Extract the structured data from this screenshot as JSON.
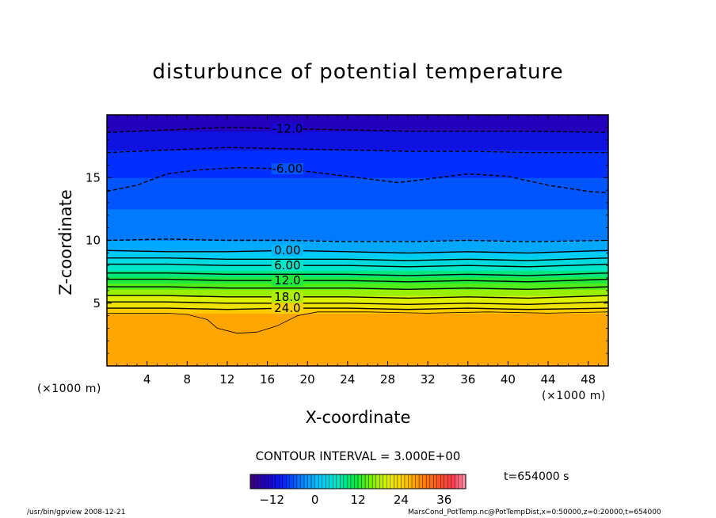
{
  "chart_data": {
    "type": "heatmap",
    "title": "disturbunce of potential temperature",
    "xlabel": "X-coordinate",
    "ylabel": "Z-coordinate",
    "x_unit": "(×1000 m)",
    "x_unit_right": "(×1000 m)",
    "xlim": [
      0,
      50
    ],
    "ylim": [
      0,
      20
    ],
    "x_ticks": [
      4,
      8,
      12,
      16,
      20,
      24,
      28,
      32,
      36,
      40,
      44,
      48
    ],
    "y_ticks": [
      5,
      10,
      15
    ],
    "contour_interval_text": "CONTOUR INTERVAL = 3.000E+00",
    "colorbar": {
      "range": [
        -18,
        42
      ],
      "ticks": [
        -12,
        0,
        12,
        24,
        36
      ]
    },
    "color_bands": [
      {
        "z": [
          0.0,
          4.2
        ],
        "value": 27.5
      },
      {
        "z": [
          4.2,
          4.6
        ],
        "value": 25
      },
      {
        "z": [
          4.6,
          5.1
        ],
        "value": 22
      },
      {
        "z": [
          5.1,
          5.6
        ],
        "value": 20
      },
      {
        "z": [
          5.6,
          6.1
        ],
        "value": 17
      },
      {
        "z": [
          6.1,
          6.6
        ],
        "value": 14
      },
      {
        "z": [
          6.6,
          7.1
        ],
        "value": 12
      },
      {
        "z": [
          7.1,
          7.6
        ],
        "value": 9
      },
      {
        "z": [
          7.6,
          8.1
        ],
        "value": 6
      },
      {
        "z": [
          8.1,
          8.6
        ],
        "value": 4
      },
      {
        "z": [
          8.6,
          9.1
        ],
        "value": 2
      },
      {
        "z": [
          9.1,
          10.0
        ],
        "value": -1
      },
      {
        "z": [
          10.0,
          12.5
        ],
        "value": -4
      },
      {
        "z": [
          12.5,
          15.0
        ],
        "value": -6
      },
      {
        "z": [
          15.0,
          17.2
        ],
        "value": -8
      },
      {
        "z": [
          17.2,
          18.7
        ],
        "value": -11
      },
      {
        "z": [
          18.7,
          20.0
        ],
        "value": -14
      }
    ],
    "contours": [
      {
        "value": -12,
        "label": "-12.0",
        "label_x": 18,
        "dashed": true,
        "points": [
          [
            0,
            18.6
          ],
          [
            6,
            18.8
          ],
          [
            12,
            19.0
          ],
          [
            18,
            18.9
          ],
          [
            24,
            18.8
          ],
          [
            30,
            18.7
          ],
          [
            36,
            18.7
          ],
          [
            42,
            18.7
          ],
          [
            50,
            18.6
          ]
        ]
      },
      {
        "value": -9,
        "label": "",
        "label_x": null,
        "dashed": true,
        "points": [
          [
            0,
            17.0
          ],
          [
            6,
            17.2
          ],
          [
            12,
            17.4
          ],
          [
            18,
            17.3
          ],
          [
            24,
            17.2
          ],
          [
            30,
            17.1
          ],
          [
            36,
            17.1
          ],
          [
            42,
            17.0
          ],
          [
            50,
            17.0
          ]
        ]
      },
      {
        "value": -6,
        "label": "-6.00",
        "label_x": 18,
        "dashed": true,
        "points": [
          [
            0,
            13.9
          ],
          [
            3,
            14.4
          ],
          [
            6,
            15.3
          ],
          [
            9,
            15.6
          ],
          [
            13,
            15.8
          ],
          [
            18,
            15.7
          ],
          [
            22,
            15.3
          ],
          [
            26,
            14.9
          ],
          [
            29,
            14.6
          ],
          [
            33,
            15.0
          ],
          [
            36,
            15.3
          ],
          [
            40,
            15.1
          ],
          [
            44,
            14.4
          ],
          [
            48,
            13.9
          ],
          [
            50,
            13.8
          ]
        ]
      },
      {
        "value": -3,
        "label": "",
        "label_x": null,
        "dashed": true,
        "points": [
          [
            0,
            10.0
          ],
          [
            6,
            10.1
          ],
          [
            12,
            10.0
          ],
          [
            18,
            10.0
          ],
          [
            24,
            9.9
          ],
          [
            30,
            9.9
          ],
          [
            36,
            10.0
          ],
          [
            42,
            9.9
          ],
          [
            50,
            10.0
          ]
        ]
      },
      {
        "value": 0,
        "label": "0.00",
        "label_x": 18,
        "solid": true,
        "points": [
          [
            0,
            9.2
          ],
          [
            6,
            9.1
          ],
          [
            12,
            9.1
          ],
          [
            18,
            9.2
          ],
          [
            24,
            9.1
          ],
          [
            30,
            9.0
          ],
          [
            36,
            9.1
          ],
          [
            42,
            9.0
          ],
          [
            50,
            9.2
          ]
        ]
      },
      {
        "value": 3,
        "label": "",
        "label_x": null,
        "points": [
          [
            0,
            8.6
          ],
          [
            6,
            8.6
          ],
          [
            12,
            8.5
          ],
          [
            18,
            8.5
          ],
          [
            24,
            8.5
          ],
          [
            30,
            8.4
          ],
          [
            36,
            8.5
          ],
          [
            42,
            8.4
          ],
          [
            50,
            8.6
          ]
        ]
      },
      {
        "value": 6,
        "label": "6.00",
        "label_x": 18,
        "points": [
          [
            0,
            8.1
          ],
          [
            6,
            8.1
          ],
          [
            12,
            8.0
          ],
          [
            18,
            8.0
          ],
          [
            24,
            8.0
          ],
          [
            30,
            7.9
          ],
          [
            36,
            8.0
          ],
          [
            42,
            7.9
          ],
          [
            50,
            8.1
          ]
        ]
      },
      {
        "value": 9,
        "label": "",
        "label_x": null,
        "points": [
          [
            0,
            7.4
          ],
          [
            6,
            7.4
          ],
          [
            12,
            7.3
          ],
          [
            18,
            7.3
          ],
          [
            24,
            7.3
          ],
          [
            30,
            7.2
          ],
          [
            36,
            7.3
          ],
          [
            42,
            7.2
          ],
          [
            50,
            7.4
          ]
        ]
      },
      {
        "value": 12,
        "label": "12.0",
        "label_x": 18,
        "points": [
          [
            0,
            6.9
          ],
          [
            6,
            6.9
          ],
          [
            12,
            6.8
          ],
          [
            18,
            6.8
          ],
          [
            24,
            6.8
          ],
          [
            30,
            6.7
          ],
          [
            36,
            6.8
          ],
          [
            42,
            6.7
          ],
          [
            50,
            6.9
          ]
        ]
      },
      {
        "value": 15,
        "label": "",
        "label_x": null,
        "points": [
          [
            0,
            6.3
          ],
          [
            6,
            6.3
          ],
          [
            12,
            6.2
          ],
          [
            18,
            6.2
          ],
          [
            24,
            6.2
          ],
          [
            30,
            6.1
          ],
          [
            36,
            6.2
          ],
          [
            42,
            6.1
          ],
          [
            50,
            6.3
          ]
        ]
      },
      {
        "value": 18,
        "label": "18.0",
        "label_x": 18,
        "points": [
          [
            0,
            5.6
          ],
          [
            6,
            5.6
          ],
          [
            12,
            5.5
          ],
          [
            18,
            5.5
          ],
          [
            24,
            5.5
          ],
          [
            30,
            5.4
          ],
          [
            36,
            5.5
          ],
          [
            42,
            5.4
          ],
          [
            50,
            5.6
          ]
        ]
      },
      {
        "value": 21,
        "label": "",
        "label_x": null,
        "points": [
          [
            0,
            5.1
          ],
          [
            6,
            5.1
          ],
          [
            12,
            5.0
          ],
          [
            18,
            5.0
          ],
          [
            24,
            5.0
          ],
          [
            30,
            4.9
          ],
          [
            36,
            5.0
          ],
          [
            42,
            4.9
          ],
          [
            50,
            5.1
          ]
        ]
      },
      {
        "value": 24,
        "label": "24.0",
        "label_x": 18,
        "points": [
          [
            0,
            4.6
          ],
          [
            6,
            4.6
          ],
          [
            12,
            4.5
          ],
          [
            18,
            4.6
          ],
          [
            24,
            4.6
          ],
          [
            30,
            4.5
          ],
          [
            36,
            4.6
          ],
          [
            42,
            4.5
          ],
          [
            50,
            4.6
          ]
        ]
      },
      {
        "value": 27,
        "label": "",
        "label_x": null,
        "thin": true,
        "points": [
          [
            0,
            4.2
          ],
          [
            6,
            4.2
          ],
          [
            8,
            4.1
          ],
          [
            10,
            3.7
          ],
          [
            11,
            3.0
          ],
          [
            13,
            2.6
          ],
          [
            15,
            2.7
          ],
          [
            17,
            3.2
          ],
          [
            19,
            4.0
          ],
          [
            21,
            4.3
          ],
          [
            26,
            4.3
          ],
          [
            32,
            4.2
          ],
          [
            38,
            4.3
          ],
          [
            44,
            4.2
          ],
          [
            50,
            4.3
          ]
        ]
      }
    ]
  },
  "legend": {
    "time": "t=654000 s"
  },
  "footer": {
    "left": "/usr/bin/gpview   2008-12-21",
    "right": "MarsCond_PotTemp.nc@PotTempDist,x=0:50000,z=0:20000,t=654000"
  }
}
